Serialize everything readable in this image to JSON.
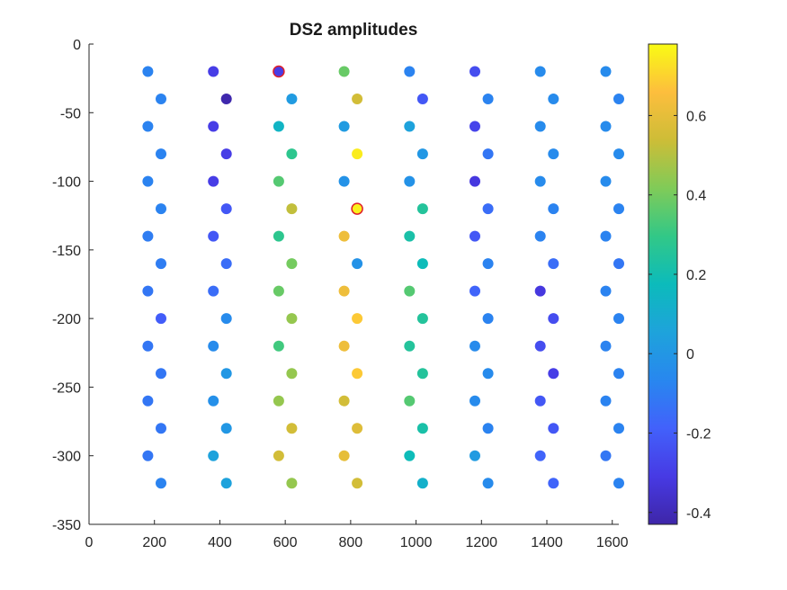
{
  "chart_data": {
    "type": "scatter",
    "title": "DS2 amplitudes",
    "xlim": [
      0,
      1620
    ],
    "ylim": [
      -350,
      0
    ],
    "xticks": [
      0,
      200,
      400,
      600,
      800,
      1000,
      1200,
      1400,
      1600
    ],
    "yticks": [
      0,
      -50,
      -100,
      -150,
      -200,
      -250,
      -300,
      -350
    ],
    "grid": false,
    "colorbar": {
      "colormap": "parula",
      "range": [
        -0.43,
        0.78
      ],
      "ticks": [
        0.6,
        0.4,
        0.2,
        0,
        -0.2,
        -0.4
      ]
    },
    "highlight_color": "#e0202a",
    "points": [
      {
        "x": 180,
        "y": -20,
        "v": -0.08
      },
      {
        "x": 220,
        "y": -40,
        "v": -0.08
      },
      {
        "x": 180,
        "y": -60,
        "v": -0.08
      },
      {
        "x": 220,
        "y": -80,
        "v": -0.08
      },
      {
        "x": 180,
        "y": -100,
        "v": -0.08
      },
      {
        "x": 220,
        "y": -120,
        "v": -0.08
      },
      {
        "x": 180,
        "y": -140,
        "v": -0.1
      },
      {
        "x": 220,
        "y": -160,
        "v": -0.1
      },
      {
        "x": 180,
        "y": -180,
        "v": -0.12
      },
      {
        "x": 220,
        "y": -200,
        "v": -0.2
      },
      {
        "x": 180,
        "y": -220,
        "v": -0.12
      },
      {
        "x": 220,
        "y": -240,
        "v": -0.12
      },
      {
        "x": 180,
        "y": -260,
        "v": -0.12
      },
      {
        "x": 220,
        "y": -280,
        "v": -0.12
      },
      {
        "x": 180,
        "y": -300,
        "v": -0.12
      },
      {
        "x": 220,
        "y": -320,
        "v": -0.08
      },
      {
        "x": 380,
        "y": -20,
        "v": -0.3
      },
      {
        "x": 420,
        "y": -40,
        "v": -0.42
      },
      {
        "x": 380,
        "y": -60,
        "v": -0.3
      },
      {
        "x": 420,
        "y": -80,
        "v": -0.3
      },
      {
        "x": 380,
        "y": -100,
        "v": -0.3
      },
      {
        "x": 420,
        "y": -120,
        "v": -0.22
      },
      {
        "x": 380,
        "y": -140,
        "v": -0.22
      },
      {
        "x": 420,
        "y": -160,
        "v": -0.15
      },
      {
        "x": 380,
        "y": -180,
        "v": -0.15
      },
      {
        "x": 420,
        "y": -200,
        "v": -0.05
      },
      {
        "x": 380,
        "y": -220,
        "v": -0.05
      },
      {
        "x": 420,
        "y": -240,
        "v": 0.0
      },
      {
        "x": 380,
        "y": -260,
        "v": -0.03
      },
      {
        "x": 420,
        "y": -280,
        "v": 0.0
      },
      {
        "x": 380,
        "y": -300,
        "v": 0.05
      },
      {
        "x": 420,
        "y": -320,
        "v": 0.05
      },
      {
        "x": 580,
        "y": -20,
        "v": -0.3,
        "highlight": true
      },
      {
        "x": 620,
        "y": -40,
        "v": 0.02
      },
      {
        "x": 580,
        "y": -60,
        "v": 0.14
      },
      {
        "x": 620,
        "y": -80,
        "v": 0.28
      },
      {
        "x": 580,
        "y": -100,
        "v": 0.35
      },
      {
        "x": 620,
        "y": -120,
        "v": 0.52
      },
      {
        "x": 580,
        "y": -140,
        "v": 0.28
      },
      {
        "x": 620,
        "y": -160,
        "v": 0.4
      },
      {
        "x": 580,
        "y": -180,
        "v": 0.38
      },
      {
        "x": 620,
        "y": -200,
        "v": 0.45
      },
      {
        "x": 580,
        "y": -220,
        "v": 0.32
      },
      {
        "x": 620,
        "y": -240,
        "v": 0.45
      },
      {
        "x": 580,
        "y": -260,
        "v": 0.45
      },
      {
        "x": 620,
        "y": -280,
        "v": 0.55
      },
      {
        "x": 580,
        "y": -300,
        "v": 0.55
      },
      {
        "x": 620,
        "y": -320,
        "v": 0.45
      },
      {
        "x": 780,
        "y": -20,
        "v": 0.38
      },
      {
        "x": 820,
        "y": -40,
        "v": 0.55
      },
      {
        "x": 780,
        "y": -60,
        "v": 0.02
      },
      {
        "x": 820,
        "y": -80,
        "v": 0.75
      },
      {
        "x": 780,
        "y": -100,
        "v": -0.02
      },
      {
        "x": 820,
        "y": -120,
        "v": 0.76,
        "highlight": true
      },
      {
        "x": 780,
        "y": -140,
        "v": 0.62
      },
      {
        "x": 820,
        "y": -160,
        "v": -0.02
      },
      {
        "x": 780,
        "y": -180,
        "v": 0.62
      },
      {
        "x": 820,
        "y": -200,
        "v": 0.68
      },
      {
        "x": 780,
        "y": -220,
        "v": 0.62
      },
      {
        "x": 820,
        "y": -240,
        "v": 0.68
      },
      {
        "x": 780,
        "y": -260,
        "v": 0.55
      },
      {
        "x": 820,
        "y": -280,
        "v": 0.58
      },
      {
        "x": 780,
        "y": -300,
        "v": 0.6
      },
      {
        "x": 820,
        "y": -320,
        "v": 0.55
      },
      {
        "x": 980,
        "y": -20,
        "v": -0.08
      },
      {
        "x": 1020,
        "y": -40,
        "v": -0.22
      },
      {
        "x": 980,
        "y": -60,
        "v": 0.05
      },
      {
        "x": 1020,
        "y": -80,
        "v": 0.0
      },
      {
        "x": 980,
        "y": -100,
        "v": -0.02
      },
      {
        "x": 1020,
        "y": -120,
        "v": 0.25
      },
      {
        "x": 980,
        "y": -140,
        "v": 0.22
      },
      {
        "x": 1020,
        "y": -160,
        "v": 0.18
      },
      {
        "x": 980,
        "y": -180,
        "v": 0.35
      },
      {
        "x": 1020,
        "y": -200,
        "v": 0.25
      },
      {
        "x": 980,
        "y": -220,
        "v": 0.25
      },
      {
        "x": 1020,
        "y": -240,
        "v": 0.25
      },
      {
        "x": 980,
        "y": -260,
        "v": 0.35
      },
      {
        "x": 1020,
        "y": -280,
        "v": 0.22
      },
      {
        "x": 980,
        "y": -300,
        "v": 0.18
      },
      {
        "x": 1020,
        "y": -320,
        "v": 0.12
      },
      {
        "x": 1180,
        "y": -20,
        "v": -0.25
      },
      {
        "x": 1220,
        "y": -40,
        "v": -0.08
      },
      {
        "x": 1180,
        "y": -60,
        "v": -0.28
      },
      {
        "x": 1220,
        "y": -80,
        "v": -0.12
      },
      {
        "x": 1180,
        "y": -100,
        "v": -0.32
      },
      {
        "x": 1220,
        "y": -120,
        "v": -0.15
      },
      {
        "x": 1180,
        "y": -140,
        "v": -0.22
      },
      {
        "x": 1220,
        "y": -160,
        "v": -0.08
      },
      {
        "x": 1180,
        "y": -180,
        "v": -0.18
      },
      {
        "x": 1220,
        "y": -200,
        "v": -0.08
      },
      {
        "x": 1180,
        "y": -220,
        "v": -0.05
      },
      {
        "x": 1220,
        "y": -240,
        "v": -0.05
      },
      {
        "x": 1180,
        "y": -260,
        "v": -0.05
      },
      {
        "x": 1220,
        "y": -280,
        "v": -0.08
      },
      {
        "x": 1180,
        "y": -300,
        "v": 0.02
      },
      {
        "x": 1220,
        "y": -320,
        "v": -0.05
      },
      {
        "x": 1380,
        "y": -20,
        "v": -0.05
      },
      {
        "x": 1420,
        "y": -40,
        "v": -0.05
      },
      {
        "x": 1380,
        "y": -60,
        "v": -0.05
      },
      {
        "x": 1420,
        "y": -80,
        "v": -0.05
      },
      {
        "x": 1380,
        "y": -100,
        "v": -0.05
      },
      {
        "x": 1420,
        "y": -120,
        "v": -0.08
      },
      {
        "x": 1380,
        "y": -140,
        "v": -0.08
      },
      {
        "x": 1420,
        "y": -160,
        "v": -0.15
      },
      {
        "x": 1380,
        "y": -180,
        "v": -0.32
      },
      {
        "x": 1420,
        "y": -200,
        "v": -0.25
      },
      {
        "x": 1380,
        "y": -220,
        "v": -0.25
      },
      {
        "x": 1420,
        "y": -240,
        "v": -0.3
      },
      {
        "x": 1380,
        "y": -260,
        "v": -0.22
      },
      {
        "x": 1420,
        "y": -280,
        "v": -0.22
      },
      {
        "x": 1380,
        "y": -300,
        "v": -0.18
      },
      {
        "x": 1420,
        "y": -320,
        "v": -0.18
      },
      {
        "x": 1580,
        "y": -20,
        "v": -0.05
      },
      {
        "x": 1620,
        "y": -40,
        "v": -0.08
      },
      {
        "x": 1580,
        "y": -60,
        "v": -0.05
      },
      {
        "x": 1620,
        "y": -80,
        "v": -0.05
      },
      {
        "x": 1580,
        "y": -100,
        "v": -0.05
      },
      {
        "x": 1620,
        "y": -120,
        "v": -0.08
      },
      {
        "x": 1580,
        "y": -140,
        "v": -0.08
      },
      {
        "x": 1620,
        "y": -160,
        "v": -0.12
      },
      {
        "x": 1580,
        "y": -180,
        "v": -0.08
      },
      {
        "x": 1620,
        "y": -200,
        "v": -0.08
      },
      {
        "x": 1580,
        "y": -220,
        "v": -0.08
      },
      {
        "x": 1620,
        "y": -240,
        "v": -0.08
      },
      {
        "x": 1580,
        "y": -260,
        "v": -0.08
      },
      {
        "x": 1620,
        "y": -280,
        "v": -0.08
      },
      {
        "x": 1580,
        "y": -300,
        "v": -0.12
      },
      {
        "x": 1620,
        "y": -320,
        "v": -0.08
      }
    ]
  }
}
